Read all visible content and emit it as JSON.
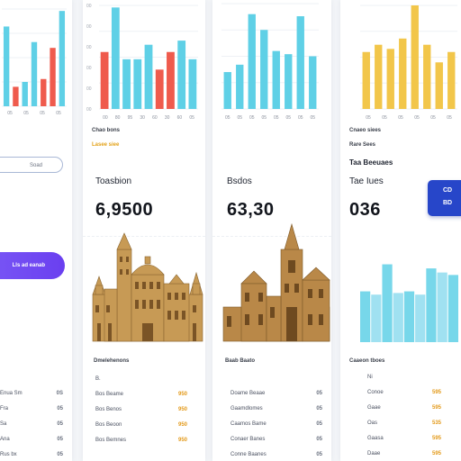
{
  "left_panel": {
    "bars": [
      0.82,
      0.2,
      0.25,
      0.66,
      0.28,
      0.6,
      0.98
    ],
    "bar_colors": [
      "#5fd0e6",
      "#ef5b4d",
      "#5fd0e6",
      "#5fd0e6",
      "#ef5b4d",
      "#ef5b4d",
      "#5fd0e6"
    ],
    "ticks": [
      "05",
      "05",
      "05",
      "05"
    ],
    "search_pill": "Soad",
    "action_button": "Lls ad eanab",
    "rows": [
      {
        "label": "Enua Sm",
        "value": "0S"
      },
      {
        "label": "Fra",
        "value": "05"
      },
      {
        "label": "Sa",
        "value": "05"
      },
      {
        "label": "Ana",
        "value": "05"
      },
      {
        "label": "Rus bx",
        "value": "05"
      }
    ]
  },
  "panel_a": {
    "bars": [
      0.55,
      0.98,
      0.48,
      0.48,
      0.62,
      0.38,
      0.55,
      0.66,
      0.48
    ],
    "bar_colors": [
      "#ef5b4d",
      "#5fd0e6",
      "#5fd0e6",
      "#5fd0e6",
      "#5fd0e6",
      "#ef5b4d",
      "#ef5b4d",
      "#5fd0e6",
      "#5fd0e6"
    ],
    "ticks": [
      "00",
      "80",
      "95",
      "30",
      "60",
      "30",
      "60",
      "05"
    ],
    "caption_1": "Chao bons",
    "caption_2": "Lasee siee",
    "title": "Toasbion",
    "value": "6,9500",
    "footer": "Dmelehenons",
    "rows": [
      {
        "label": "B.",
        "value": ""
      },
      {
        "label": "Bos Beame",
        "value": "950"
      },
      {
        "label": "Bos Benos",
        "value": "950"
      },
      {
        "label": "Bos Beoon",
        "value": "950"
      },
      {
        "label": "Bos Bemnes",
        "value": "950"
      }
    ]
  },
  "panel_b": {
    "bars": [
      0.35,
      0.42,
      0.9,
      0.75,
      0.55,
      0.52,
      0.88,
      0.5
    ],
    "bar_colors": [
      "#5fd0e6",
      "#5fd0e6",
      "#5fd0e6",
      "#5fd0e6",
      "#5fd0e6",
      "#5fd0e6",
      "#5fd0e6",
      "#5fd0e6"
    ],
    "ticks": [
      "05",
      "05",
      "05",
      "05",
      "05",
      "05",
      "05",
      "05"
    ],
    "title": "Bsdos",
    "value": "63,30",
    "footer": "Baab Baato",
    "rows": [
      {
        "label": "Doame Beaae",
        "value": "05"
      },
      {
        "label": "Gaamdlomes",
        "value": "05"
      },
      {
        "label": "Caamos Bame",
        "value": "05"
      },
      {
        "label": "Conaer Banes",
        "value": "05"
      },
      {
        "label": "Conne Baanes",
        "value": "05"
      }
    ]
  },
  "panel_c": {
    "bars": [
      0.55,
      0.62,
      0.58,
      0.68,
      1.0,
      0.62,
      0.45,
      0.55
    ],
    "bar_colors": [
      "#f2c64a",
      "#f2c64a",
      "#f2c64a",
      "#f2c64a",
      "#f2c64a",
      "#f2c64a",
      "#f2c64a",
      "#f2c64a"
    ],
    "ticks": [
      "05",
      "05",
      "05",
      "05",
      "05",
      "05"
    ],
    "caption_1": "Cnaeo siees",
    "caption_2": "Rare Sees",
    "title": "Taa Beeuaes",
    "subtitle": "Tae Iues",
    "value": "036",
    "badge": [
      "CD",
      "BD"
    ],
    "area_bars": [
      0.62,
      0.58,
      0.95,
      0.6,
      0.62,
      0.58,
      0.9,
      0.85,
      0.82
    ],
    "footer": "Caaeon tboes",
    "rows": [
      {
        "label": "Ni",
        "value": ""
      },
      {
        "label": "Conoe",
        "value": "595"
      },
      {
        "label": "Gaae",
        "value": "595"
      },
      {
        "label": "Oas",
        "value": "535"
      },
      {
        "label": "Gaasa",
        "value": "595"
      },
      {
        "label": "Daae",
        "value": "595"
      }
    ]
  }
}
